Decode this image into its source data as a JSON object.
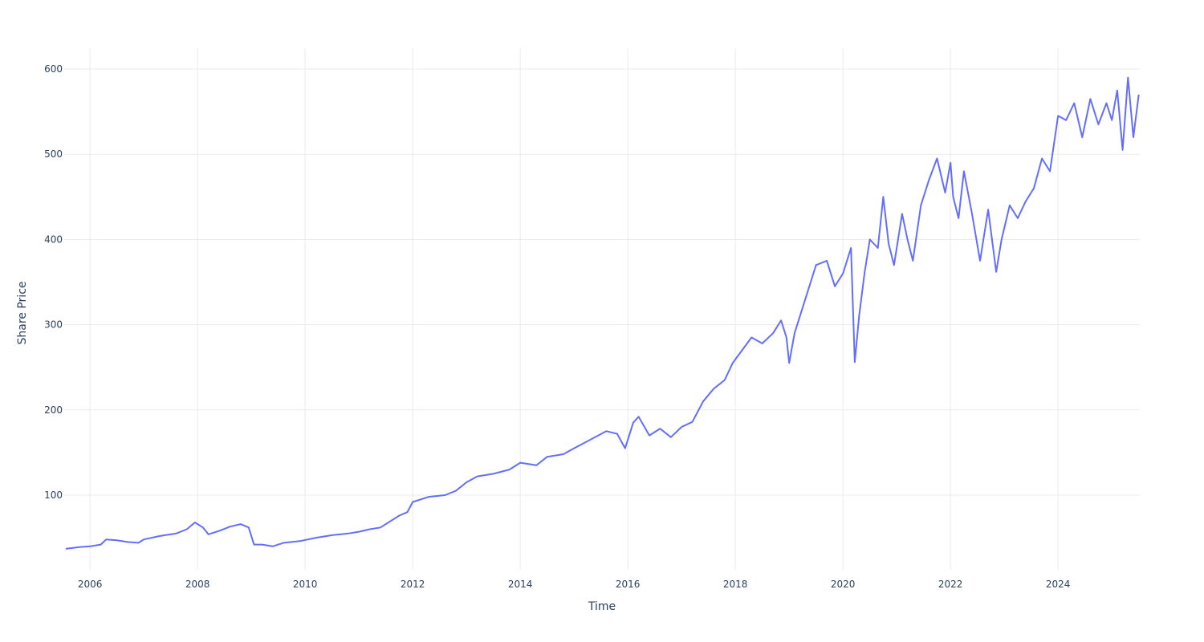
{
  "chart_data": {
    "type": "line",
    "x_label": "Time",
    "y_label": "Share Price",
    "x": [
      2005.55,
      2005.8,
      2006.0,
      2006.2,
      2006.3,
      2006.5,
      2006.7,
      2006.9,
      2007.0,
      2007.3,
      2007.6,
      2007.8,
      2007.95,
      2008.1,
      2008.2,
      2008.4,
      2008.6,
      2008.8,
      2008.95,
      2009.05,
      2009.2,
      2009.4,
      2009.6,
      2009.9,
      2010.2,
      2010.5,
      2010.8,
      2011.0,
      2011.2,
      2011.4,
      2011.6,
      2011.75,
      2011.9,
      2012.0,
      2012.3,
      2012.6,
      2012.8,
      2013.0,
      2013.2,
      2013.5,
      2013.8,
      2014.0,
      2014.3,
      2014.5,
      2014.8,
      2015.0,
      2015.3,
      2015.6,
      2015.8,
      2015.95,
      2016.1,
      2016.2,
      2016.4,
      2016.6,
      2016.8,
      2017.0,
      2017.2,
      2017.4,
      2017.6,
      2017.8,
      2017.95,
      2018.1,
      2018.3,
      2018.5,
      2018.7,
      2018.85,
      2018.95,
      2019.0,
      2019.1,
      2019.3,
      2019.5,
      2019.7,
      2019.85,
      2020.0,
      2020.15,
      2020.22,
      2020.3,
      2020.4,
      2020.5,
      2020.65,
      2020.75,
      2020.85,
      2020.95,
      2021.1,
      2021.2,
      2021.3,
      2021.45,
      2021.6,
      2021.75,
      2021.9,
      2022.0,
      2022.05,
      2022.15,
      2022.25,
      2022.4,
      2022.55,
      2022.7,
      2022.85,
      2022.95,
      2023.1,
      2023.25,
      2023.4,
      2023.55,
      2023.7,
      2023.85,
      2024.0,
      2024.15,
      2024.3,
      2024.45,
      2024.6,
      2024.75,
      2024.9,
      2025.0,
      2025.1,
      2025.2,
      2025.3,
      2025.4,
      2025.5
    ],
    "values": [
      37,
      39,
      40,
      42,
      48,
      47,
      45,
      44,
      48,
      52,
      55,
      60,
      68,
      62,
      54,
      58,
      63,
      66,
      62,
      42,
      42,
      40,
      44,
      46,
      50,
      53,
      55,
      57,
      60,
      62,
      70,
      76,
      80,
      92,
      98,
      100,
      105,
      115,
      122,
      125,
      130,
      138,
      135,
      145,
      148,
      155,
      165,
      175,
      172,
      155,
      185,
      192,
      170,
      178,
      168,
      180,
      186,
      210,
      225,
      235,
      255,
      268,
      285,
      278,
      290,
      305,
      285,
      255,
      290,
      330,
      370,
      375,
      345,
      360,
      390,
      256,
      310,
      360,
      400,
      390,
      450,
      395,
      370,
      430,
      400,
      375,
      440,
      470,
      495,
      455,
      490,
      450,
      425,
      480,
      430,
      375,
      435,
      362,
      400,
      440,
      425,
      445,
      460,
      495,
      480,
      545,
      540,
      560,
      520,
      565,
      535,
      560,
      540,
      575,
      505,
      590,
      520,
      570
    ],
    "color": "#636efa",
    "xlim": [
      2005.52,
      2025.52
    ],
    "xticks": [
      2006,
      2008,
      2010,
      2012,
      2014,
      2016,
      2018,
      2020,
      2022,
      2024
    ],
    "ylim": [
      12.4,
      624.5
    ],
    "yticks": [
      100,
      200,
      300,
      400,
      500,
      600
    ],
    "grid": true
  }
}
